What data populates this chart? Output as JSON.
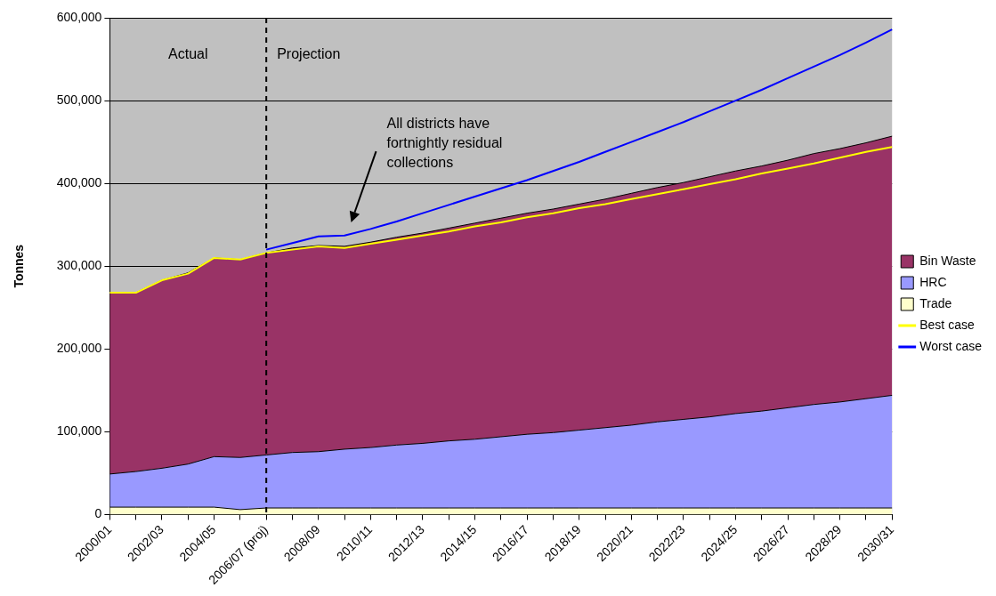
{
  "chart_data": {
    "type": "area",
    "ylabel": "Tonnes",
    "categories": [
      "2000/01",
      null,
      "2002/03",
      null,
      "2004/05",
      null,
      "2006/07 (proj)",
      null,
      "2008/09",
      null,
      "2010/11",
      null,
      "2012/13",
      null,
      "2014/15",
      null,
      "2016/17",
      null,
      "2018/19",
      null,
      "2020/21",
      null,
      "2022/23",
      null,
      "2024/25",
      null,
      "2026/27",
      null,
      "2028/29",
      null,
      "2030/31"
    ],
    "stacked": true,
    "series": [
      {
        "name": "Trade",
        "type": "area",
        "color": "#ffffcc",
        "values": [
          9000,
          9000,
          9000,
          9000,
          9000,
          6000,
          8000,
          8000,
          8000,
          8000,
          8000,
          8000,
          8000,
          8000,
          8000,
          8000,
          8000,
          8000,
          8000,
          8000,
          8000,
          8000,
          8000,
          8000,
          8000,
          8000,
          8000,
          8000,
          8000,
          8000,
          8000
        ]
      },
      {
        "name": "HRC",
        "type": "area",
        "color": "#9999ff",
        "values": [
          40000,
          43000,
          47000,
          52000,
          61000,
          63000,
          64000,
          67000,
          68000,
          71000,
          73000,
          76000,
          78000,
          81000,
          83000,
          86000,
          89000,
          91000,
          94000,
          97000,
          100000,
          104000,
          107000,
          110000,
          114000,
          117000,
          121000,
          125000,
          128000,
          132000,
          136000
        ]
      },
      {
        "name": "Bin Waste",
        "type": "area",
        "color": "#993366",
        "values": [
          219000,
          216000,
          227000,
          231000,
          240000,
          239000,
          244000,
          247000,
          249000,
          245000,
          248000,
          251000,
          254000,
          257000,
          261000,
          264000,
          267000,
          270000,
          273000,
          276000,
          280000,
          283000,
          286000,
          290000,
          293000,
          296000,
          299000,
          303000,
          306000,
          309000,
          313000
        ]
      },
      {
        "name": "Best case",
        "type": "line",
        "color": "#ffff00",
        "values": [
          268000,
          268000,
          283000,
          291000,
          310000,
          308000,
          316000,
          320000,
          324000,
          322000,
          327000,
          332000,
          337000,
          342000,
          348000,
          353000,
          359000,
          364000,
          370000,
          375000,
          381000,
          387000,
          393000,
          399000,
          405000,
          412000,
          418000,
          424000,
          431000,
          438000,
          444000
        ]
      },
      {
        "name": "Worst case",
        "type": "line",
        "color": "#0000ff",
        "values": [
          null,
          null,
          null,
          null,
          null,
          null,
          320000,
          328000,
          336000,
          337000,
          345000,
          354000,
          364000,
          374000,
          384000,
          394000,
          404000,
          415000,
          426000,
          438000,
          450000,
          462000,
          474000,
          487000,
          500000,
          513000,
          527000,
          541000,
          555000,
          570000,
          586000
        ]
      }
    ],
    "ylim": [
      0,
      600000
    ],
    "yticks": [
      {
        "value": 0,
        "label": "0"
      },
      {
        "value": 100000,
        "label": "100,000"
      },
      {
        "value": 200000,
        "label": "200,000"
      },
      {
        "value": 300000,
        "label": "300,000"
      },
      {
        "value": 400000,
        "label": "400,000"
      },
      {
        "value": 500000,
        "label": "500,000"
      },
      {
        "value": 600000,
        "label": "600,000"
      }
    ],
    "grid": "y",
    "legend": "right",
    "ref_lines": [
      {
        "axis": "x",
        "value": "2006/07 (proj)",
        "color": "#000000",
        "line_style": "dashed"
      }
    ],
    "annotations": [
      "Actual",
      "Projection",
      "All districts have fortnightly residual collections"
    ]
  }
}
